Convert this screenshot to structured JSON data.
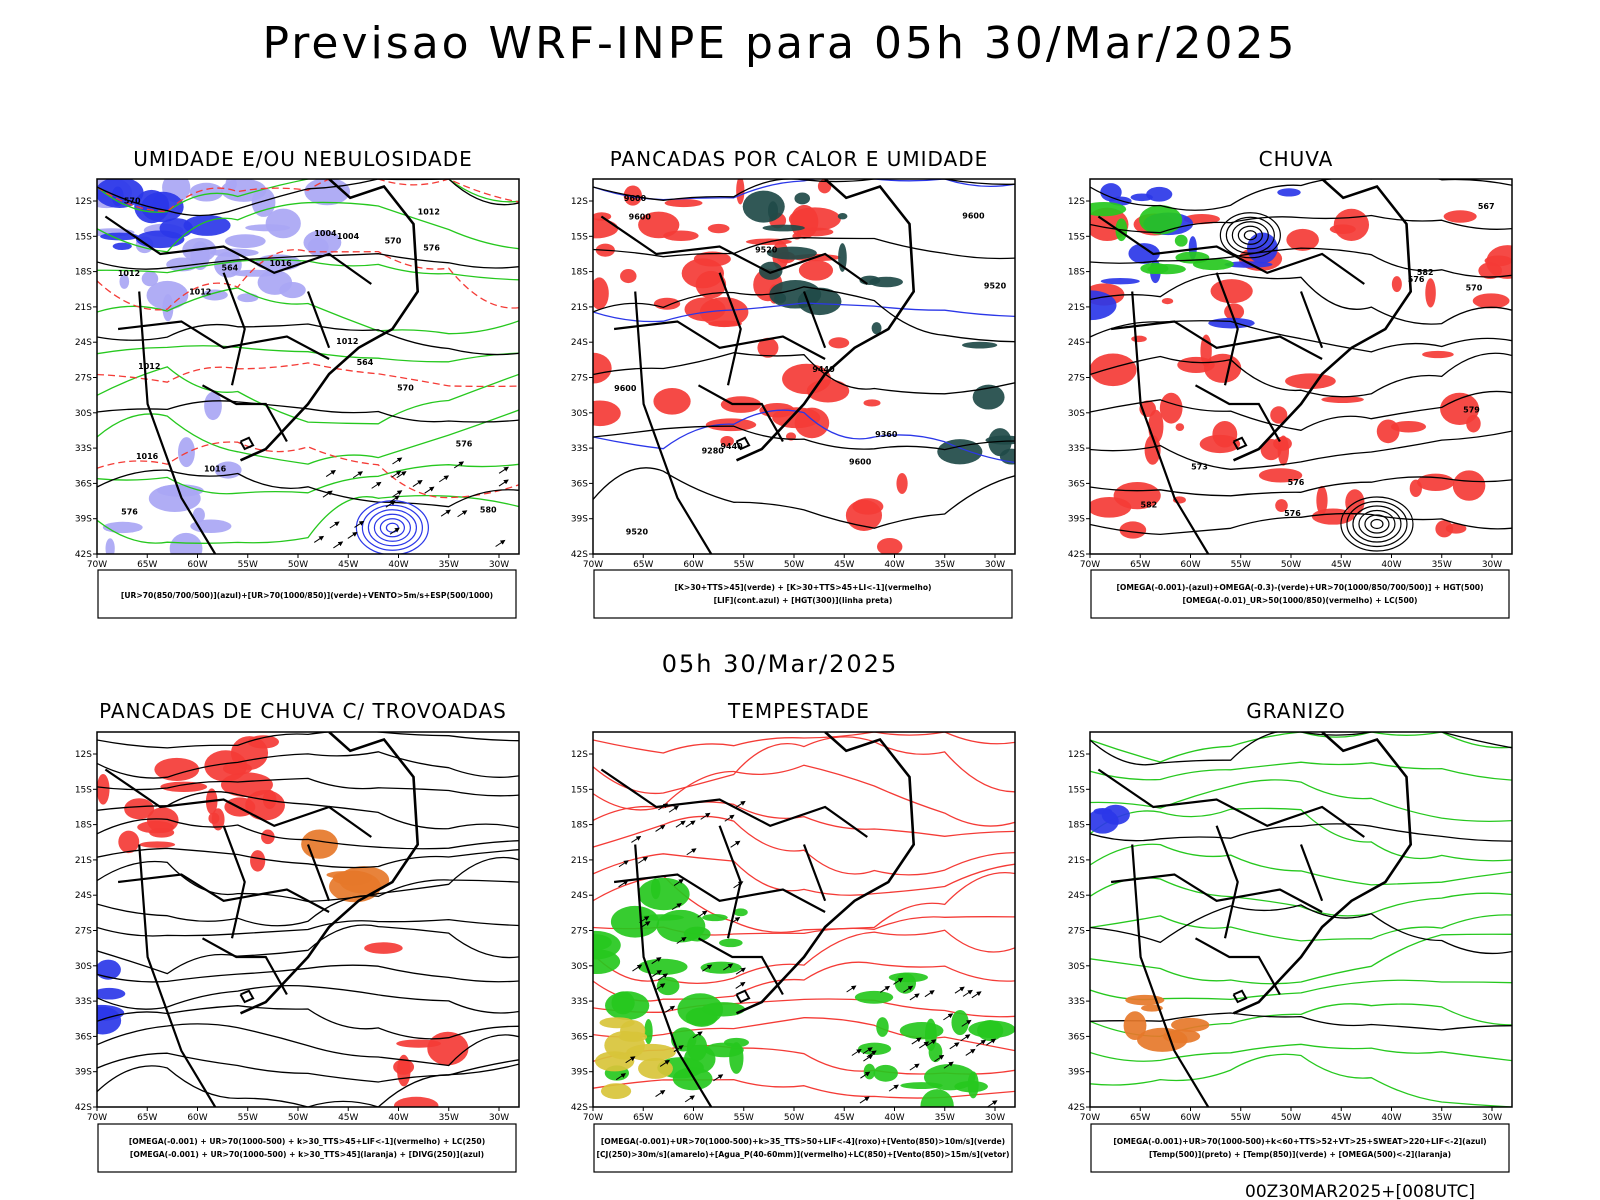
{
  "page": {
    "main_title": "Previsao WRF-INPE  para 05h 30/Mar/2025",
    "mid_title": "05h 30/Mar/2025",
    "footer": "00Z30MAR2025+[008UTC]"
  },
  "axes": {
    "lat_labels": [
      "12S",
      "15S",
      "18S",
      "21S",
      "24S",
      "27S",
      "30S",
      "33S",
      "36S",
      "39S",
      "42S"
    ],
    "lon_labels": [
      "70W",
      "65W",
      "60W",
      "55W",
      "50W",
      "45W",
      "40W",
      "35W",
      "30W"
    ]
  },
  "colors": {
    "red": "#f43b36",
    "green": "#26c81e",
    "blue": "#2b37e8",
    "lavender": "#a9a6f4",
    "darkteal": "#1f4a48",
    "orange": "#e6782a",
    "yellow": "#d8c43a"
  },
  "panels": [
    {
      "title": "UMIDADE E/OU NEBULOSIDADE",
      "legend": [
        "[UR>70(850/700/500)](azul)+[UR>70(1000/850)](verde)+VENTO>5m/s+ESP(500/1000)"
      ],
      "contour_labels": [
        "1012",
        "1016",
        "1012",
        "1016",
        "1012",
        "1016",
        "1012",
        "1012",
        "1004",
        "1004",
        "570",
        "576",
        "576",
        "570",
        "564",
        "564",
        "570",
        "576",
        "580"
      ]
    },
    {
      "title": "PANCADAS POR CALOR E UMIDADE",
      "legend": [
        "[K>30+TTS>45](verde) + [K>30+TTS>45+LI<-1](vermelho)",
        "[LIF](cont.azul) + [HGT(300)](linha preta)"
      ],
      "contour_labels": [
        "9600",
        "9600",
        "9600",
        "9600",
        "9520",
        "9600",
        "9520",
        "9440",
        "9520",
        "9360",
        "9280",
        "9440"
      ]
    },
    {
      "title": "CHUVA",
      "legend": [
        "[OMEGA(-0.001)-(azul)+OMEGA(-0.3)-(verde)+UR>70(1000/850/700/500)] + HGT(500)",
        "[OMEGA(-0.01)_UR>50(1000/850)(vermelho) + LC(500)"
      ],
      "contour_labels": [
        "582",
        "582",
        "579",
        "576",
        "576",
        "573",
        "570",
        "567",
        "576"
      ]
    },
    {
      "title": "PANCADAS DE CHUVA C/ TROVOADAS",
      "legend": [
        "[OMEGA(-0.001) + UR>70(1000-500) + k>30_TTS>45+LIF<-1](vermelho) + LC(250)",
        "[OMEGA(-0.001) + UR>70(1000-500) + k>30_TTS>45](laranja) + [DIVG(250)](azul)"
      ],
      "contour_labels": []
    },
    {
      "title": "TEMPESTADE",
      "legend": [
        "[OMEGA(-0.001)+UR>70(1000-500)+k>35_TTS>50+LIF<-4](roxo)+[Vento(850)>10m/s](verde)",
        "[CJ(250)>30m/s](amarelo)+[Agua_P(40-60mm)](vermelho)+LC(850)+[Vento(850)>15m/s](vetor)"
      ],
      "contour_labels": []
    },
    {
      "title": "GRANIZO",
      "legend": [
        "[OMEGA(-0.001)+UR>70(1000-500)+k<60+TTS>52+VT>25+SWEAT>220+LIF<-2](azul)",
        "[Temp(500)](preto) + [Temp(850)](verde) + [OMEGA(500)<-2](laranja)"
      ],
      "contour_labels": []
    }
  ]
}
